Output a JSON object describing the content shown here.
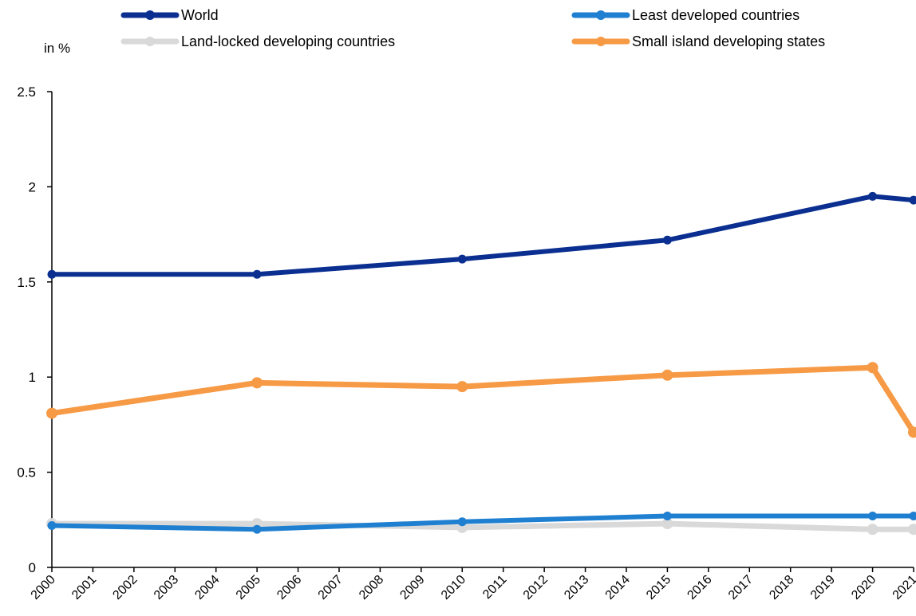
{
  "chart_data": {
    "type": "line",
    "unit_label": "in %",
    "x": [
      "2000",
      "2001",
      "2002",
      "2003",
      "2004",
      "2005",
      "2006",
      "2007",
      "2008",
      "2009",
      "2010",
      "2011",
      "2012",
      "2013",
      "2014",
      "2015",
      "2016",
      "2017",
      "2018",
      "2019",
      "2020",
      "2021"
    ],
    "ylim": [
      0,
      2.5
    ],
    "yticks": [
      "0",
      "0.5",
      "1",
      "1.5",
      "2",
      "2.5"
    ],
    "grid": false,
    "legend_position": "top",
    "series": [
      {
        "name": "World",
        "color": "#0b2f91",
        "points": [
          [
            "2000",
            1.54
          ],
          [
            "2005",
            1.54
          ],
          [
            "2010",
            1.62
          ],
          [
            "2015",
            1.72
          ],
          [
            "2020",
            1.95
          ],
          [
            "2021",
            1.93
          ]
        ]
      },
      {
        "name": "Least developed countries",
        "color": "#1f7fd0",
        "points": [
          [
            "2000",
            0.22
          ],
          [
            "2005",
            0.2
          ],
          [
            "2010",
            0.24
          ],
          [
            "2015",
            0.27
          ],
          [
            "2020",
            0.27
          ],
          [
            "2021",
            0.27
          ]
        ]
      },
      {
        "name": "Land-locked developing countries",
        "color": "#d9d9d9",
        "points": [
          [
            "2000",
            0.23
          ],
          [
            "2005",
            0.23
          ],
          [
            "2010",
            0.21
          ],
          [
            "2015",
            0.23
          ],
          [
            "2020",
            0.2
          ],
          [
            "2021",
            0.2
          ]
        ]
      },
      {
        "name": "Small island developing states",
        "color": "#f79a45",
        "points": [
          [
            "2000",
            0.81
          ],
          [
            "2005",
            0.97
          ],
          [
            "2010",
            0.95
          ],
          [
            "2015",
            1.01
          ],
          [
            "2020",
            1.05
          ],
          [
            "2021",
            0.71
          ]
        ]
      }
    ]
  }
}
